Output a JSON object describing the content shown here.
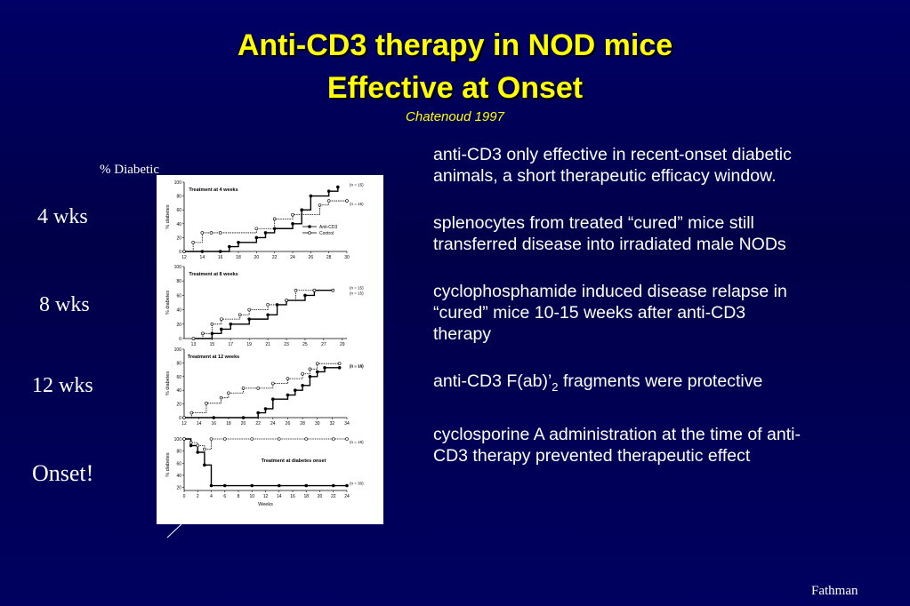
{
  "slide": {
    "title_lines": [
      "Anti-CD3 therapy in NOD mice",
      "Effective at Onset"
    ],
    "citation": "Chatenoud 1997",
    "figure_axis_label": "% Diabetic",
    "row_labels": [
      "4 wks",
      "8 wks",
      "12 wks",
      "Onset!"
    ],
    "bullets": [
      [
        "anti-CD3 only effective in recent-onset diabetic animals, a short therapeutic efficacy window."
      ],
      [
        "splenocytes from treated “cured” mice still transferred disease into irradiated male NODs"
      ],
      [
        "cyclophosphamide induced disease relapse in “cured” mice 10-15 weeks after anti-CD3 therapy"
      ],
      [
        "anti-CD3 F(ab)’",
        "2",
        " fragments were protective"
      ],
      [
        "cyclosporine A administration at the time of anti-CD3 therapy prevented therapeutic effect"
      ]
    ],
    "footer": "Fathman"
  },
  "panels": [
    {
      "label": "Treatment at 4 weeks",
      "ylabel": "% diabetes",
      "xlim": [
        12,
        30
      ],
      "ylim": [
        0,
        100
      ],
      "xticks": [
        12,
        14,
        16,
        18,
        20,
        22,
        24,
        26,
        28,
        30
      ],
      "yticks": [
        0,
        20,
        40,
        60,
        80,
        100
      ],
      "legend": true,
      "series": [
        {
          "name": "Anti-CD3",
          "n_label": "(n = 15)",
          "filled": true,
          "x": [
            12,
            14,
            16,
            17,
            18,
            20,
            21,
            22,
            24,
            25,
            26,
            28,
            29
          ],
          "y": [
            0,
            0,
            0,
            7,
            13,
            20,
            27,
            33,
            40,
            60,
            80,
            87,
            93
          ]
        },
        {
          "name": "Control",
          "n_label": "(n = 15)",
          "filled": false,
          "x": [
            12,
            13,
            14,
            15,
            16,
            20,
            22,
            24,
            27,
            28,
            30
          ],
          "y": [
            0,
            13,
            27,
            27,
            27,
            33,
            47,
            53,
            67,
            73,
            73
          ]
        }
      ]
    },
    {
      "label": "Treatment at 8 weeks",
      "ylabel": "% diabetes",
      "xlim": [
        12,
        29.5
      ],
      "ylim": [
        0,
        100
      ],
      "xticks": [
        13,
        15,
        17,
        19,
        21,
        23,
        25,
        27,
        29
      ],
      "yticks": [
        0,
        20,
        40,
        60,
        80,
        100
      ],
      "legend": false,
      "series": [
        {
          "name": "Anti-CD3",
          "n_label": "(n = 15)",
          "filled": true,
          "x": [
            13,
            15,
            16,
            17,
            19,
            21,
            22,
            23,
            25,
            26,
            28
          ],
          "y": [
            0,
            7,
            13,
            20,
            27,
            33,
            47,
            53,
            60,
            67,
            67
          ]
        },
        {
          "name": "Control",
          "n_label": "(n = 15)",
          "filled": false,
          "x": [
            13,
            14,
            15,
            16,
            18,
            19,
            21,
            23,
            24,
            26,
            28
          ],
          "y": [
            0,
            7,
            20,
            27,
            33,
            40,
            47,
            53,
            67,
            67,
            67
          ]
        }
      ]
    },
    {
      "label": "Treatment at 12 weeks",
      "ylabel": "% diabetes",
      "xlim": [
        12,
        34
      ],
      "ylim": [
        0,
        100
      ],
      "xticks": [
        12,
        14,
        16,
        18,
        20,
        22,
        24,
        26,
        28,
        30,
        32,
        34
      ],
      "yticks": [
        0,
        20,
        40,
        60,
        80,
        100
      ],
      "legend": false,
      "series": [
        {
          "name": "Anti-CD3",
          "n_label": "(n = 15)",
          "filled": true,
          "x": [
            12,
            16,
            20,
            22,
            23,
            24,
            26,
            27,
            28,
            29,
            30,
            31,
            33
          ],
          "y": [
            0,
            0,
            0,
            7,
            13,
            27,
            33,
            40,
            47,
            60,
            67,
            73,
            73
          ]
        },
        {
          "name": "Control",
          "n_label": "(n = 14)",
          "filled": false,
          "x": [
            12,
            13,
            15,
            17,
            18,
            20,
            22,
            24,
            26,
            28,
            29,
            30,
            33
          ],
          "y": [
            0,
            7,
            21,
            29,
            36,
            43,
            43,
            50,
            57,
            64,
            71,
            79,
            79
          ]
        }
      ]
    },
    {
      "label": "Treatment at diabetes onset",
      "ylabel": "% diabetes",
      "xlabel": "Weeks",
      "xlim": [
        0,
        24
      ],
      "ylim": [
        15,
        100
      ],
      "xticks": [
        0,
        2,
        4,
        6,
        8,
        10,
        12,
        14,
        16,
        18,
        20,
        22,
        24
      ],
      "yticks": [
        20,
        40,
        60,
        80,
        100
      ],
      "legend": false,
      "series": [
        {
          "name": "Anti-CD3",
          "n_label": "(n = 30)",
          "filled": true,
          "x": [
            0,
            1,
            2,
            3,
            4,
            6,
            10,
            14,
            18,
            22,
            24
          ],
          "y": [
            100,
            89,
            78,
            57,
            23,
            23,
            23,
            23,
            23,
            23,
            23
          ]
        },
        {
          "name": "Control",
          "n_label": "(n = 18)",
          "filled": false,
          "x": [
            0,
            1,
            2,
            3,
            4,
            6,
            10,
            14,
            18,
            22,
            24
          ],
          "y": [
            100,
            94,
            89,
            83,
            100,
            100,
            100,
            100,
            100,
            100,
            100
          ]
        }
      ]
    }
  ]
}
